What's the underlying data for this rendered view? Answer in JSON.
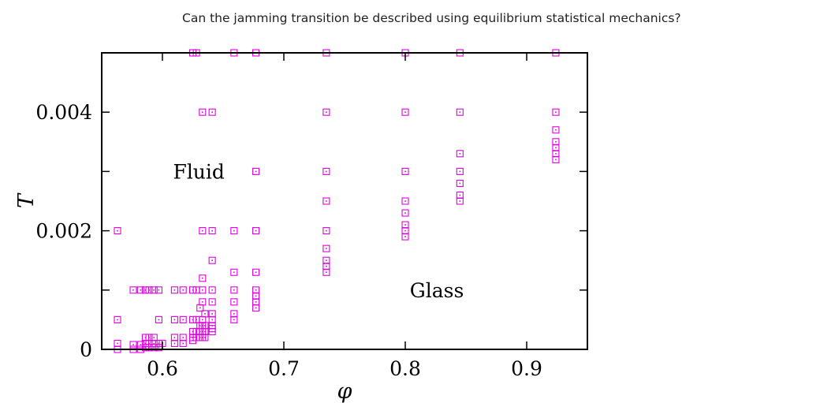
{
  "caption": "Can the jamming transition be described using equilibrium statistical mechanics?",
  "chart_data": {
    "type": "scatter",
    "title": "",
    "xlabel": "φ",
    "ylabel": "T",
    "xlim": [
      0.55,
      0.95
    ],
    "ylim": [
      0,
      0.005
    ],
    "xticks": [
      0.6,
      0.7,
      0.8,
      0.9
    ],
    "xtick_labels": [
      "0.6",
      "0.7",
      "0.8",
      "0.9"
    ],
    "yticks": [
      0,
      0.002,
      0.004
    ],
    "ytick_labels": [
      "0",
      "0.002",
      "0.004"
    ],
    "grid": false,
    "legend": "none",
    "marker": "open-square",
    "color": "#e000e0",
    "annotations": [
      {
        "text": "Fluid",
        "x": 0.63,
        "y": 0.003
      },
      {
        "text": "Glass",
        "x": 0.826,
        "y": 0.001
      }
    ],
    "points": [
      {
        "x": 0.563,
        "y": 0.002
      },
      {
        "x": 0.563,
        "y": 0.0005
      },
      {
        "x": 0.563,
        "y": 0.0001
      },
      {
        "x": 0.563,
        "y": 0.0
      },
      {
        "x": 0.576,
        "y": 0.001
      },
      {
        "x": 0.576,
        "y": 8e-05
      },
      {
        "x": 0.576,
        "y": 0.0
      },
      {
        "x": 0.582,
        "y": 0.001
      },
      {
        "x": 0.582,
        "y": 8e-05
      },
      {
        "x": 0.582,
        "y": 0.0
      },
      {
        "x": 0.586,
        "y": 0.001
      },
      {
        "x": 0.586,
        "y": 0.0002
      },
      {
        "x": 0.586,
        "y": 0.0001
      },
      {
        "x": 0.586,
        "y": 3e-05
      },
      {
        "x": 0.589,
        "y": 0.001
      },
      {
        "x": 0.589,
        "y": 0.0002
      },
      {
        "x": 0.589,
        "y": 0.0001
      },
      {
        "x": 0.589,
        "y": 3e-05
      },
      {
        "x": 0.593,
        "y": 0.001
      },
      {
        "x": 0.593,
        "y": 0.0002
      },
      {
        "x": 0.593,
        "y": 0.0001
      },
      {
        "x": 0.593,
        "y": 3e-05
      },
      {
        "x": 0.597,
        "y": 0.001
      },
      {
        "x": 0.597,
        "y": 0.0005
      },
      {
        "x": 0.597,
        "y": 0.0001
      },
      {
        "x": 0.597,
        "y": 3e-05
      },
      {
        "x": 0.6,
        "y": 0.0001
      },
      {
        "x": 0.61,
        "y": 0.001
      },
      {
        "x": 0.61,
        "y": 0.0005
      },
      {
        "x": 0.61,
        "y": 0.0002
      },
      {
        "x": 0.61,
        "y": 0.0001
      },
      {
        "x": 0.617,
        "y": 0.001
      },
      {
        "x": 0.617,
        "y": 0.0005
      },
      {
        "x": 0.617,
        "y": 0.0002
      },
      {
        "x": 0.617,
        "y": 0.0001
      },
      {
        "x": 0.625,
        "y": 0.005
      },
      {
        "x": 0.625,
        "y": 0.001
      },
      {
        "x": 0.625,
        "y": 0.0005
      },
      {
        "x": 0.625,
        "y": 0.0003
      },
      {
        "x": 0.625,
        "y": 0.0002
      },
      {
        "x": 0.625,
        "y": 0.00015
      },
      {
        "x": 0.628,
        "y": 0.005
      },
      {
        "x": 0.628,
        "y": 0.001
      },
      {
        "x": 0.628,
        "y": 0.0005
      },
      {
        "x": 0.628,
        "y": 0.0003
      },
      {
        "x": 0.628,
        "y": 0.0002
      },
      {
        "x": 0.631,
        "y": 0.0007
      },
      {
        "x": 0.631,
        "y": 0.0004
      },
      {
        "x": 0.631,
        "y": 0.0003
      },
      {
        "x": 0.631,
        "y": 0.0002
      },
      {
        "x": 0.633,
        "y": 0.004
      },
      {
        "x": 0.633,
        "y": 0.002
      },
      {
        "x": 0.633,
        "y": 0.0012
      },
      {
        "x": 0.633,
        "y": 0.001
      },
      {
        "x": 0.633,
        "y": 0.0008
      },
      {
        "x": 0.633,
        "y": 0.0005
      },
      {
        "x": 0.633,
        "y": 0.0004
      },
      {
        "x": 0.633,
        "y": 0.0003
      },
      {
        "x": 0.633,
        "y": 0.0002
      },
      {
        "x": 0.635,
        "y": 0.0006
      },
      {
        "x": 0.635,
        "y": 0.0004
      },
      {
        "x": 0.635,
        "y": 0.0003
      },
      {
        "x": 0.635,
        "y": 0.0002
      },
      {
        "x": 0.641,
        "y": 0.004
      },
      {
        "x": 0.641,
        "y": 0.002
      },
      {
        "x": 0.641,
        "y": 0.0015
      },
      {
        "x": 0.641,
        "y": 0.001
      },
      {
        "x": 0.641,
        "y": 0.0008
      },
      {
        "x": 0.641,
        "y": 0.0006
      },
      {
        "x": 0.641,
        "y": 0.0005
      },
      {
        "x": 0.641,
        "y": 0.0004
      },
      {
        "x": 0.641,
        "y": 0.00035
      },
      {
        "x": 0.641,
        "y": 0.0003
      },
      {
        "x": 0.659,
        "y": 0.005
      },
      {
        "x": 0.659,
        "y": 0.002
      },
      {
        "x": 0.659,
        "y": 0.0013
      },
      {
        "x": 0.659,
        "y": 0.001
      },
      {
        "x": 0.659,
        "y": 0.0008
      },
      {
        "x": 0.659,
        "y": 0.0006
      },
      {
        "x": 0.659,
        "y": 0.0005
      },
      {
        "x": 0.677,
        "y": 0.005
      },
      {
        "x": 0.677,
        "y": 0.003
      },
      {
        "x": 0.677,
        "y": 0.002
      },
      {
        "x": 0.677,
        "y": 0.0013
      },
      {
        "x": 0.677,
        "y": 0.001
      },
      {
        "x": 0.677,
        "y": 0.0009
      },
      {
        "x": 0.677,
        "y": 0.0008
      },
      {
        "x": 0.677,
        "y": 0.0007
      },
      {
        "x": 0.735,
        "y": 0.005
      },
      {
        "x": 0.735,
        "y": 0.004
      },
      {
        "x": 0.735,
        "y": 0.003
      },
      {
        "x": 0.735,
        "y": 0.0025
      },
      {
        "x": 0.735,
        "y": 0.002
      },
      {
        "x": 0.735,
        "y": 0.0017
      },
      {
        "x": 0.735,
        "y": 0.0015
      },
      {
        "x": 0.735,
        "y": 0.0014
      },
      {
        "x": 0.735,
        "y": 0.0013
      },
      {
        "x": 0.8,
        "y": 0.005
      },
      {
        "x": 0.8,
        "y": 0.004
      },
      {
        "x": 0.8,
        "y": 0.003
      },
      {
        "x": 0.8,
        "y": 0.0025
      },
      {
        "x": 0.8,
        "y": 0.0023
      },
      {
        "x": 0.8,
        "y": 0.0021
      },
      {
        "x": 0.8,
        "y": 0.002
      },
      {
        "x": 0.8,
        "y": 0.0019
      },
      {
        "x": 0.845,
        "y": 0.005
      },
      {
        "x": 0.845,
        "y": 0.004
      },
      {
        "x": 0.845,
        "y": 0.0033
      },
      {
        "x": 0.845,
        "y": 0.003
      },
      {
        "x": 0.845,
        "y": 0.0028
      },
      {
        "x": 0.845,
        "y": 0.0026
      },
      {
        "x": 0.845,
        "y": 0.0025
      },
      {
        "x": 0.924,
        "y": 0.005
      },
      {
        "x": 0.924,
        "y": 0.004
      },
      {
        "x": 0.924,
        "y": 0.0037
      },
      {
        "x": 0.924,
        "y": 0.0035
      },
      {
        "x": 0.924,
        "y": 0.0034
      },
      {
        "x": 0.924,
        "y": 0.0033
      },
      {
        "x": 0.924,
        "y": 0.0032
      }
    ]
  }
}
